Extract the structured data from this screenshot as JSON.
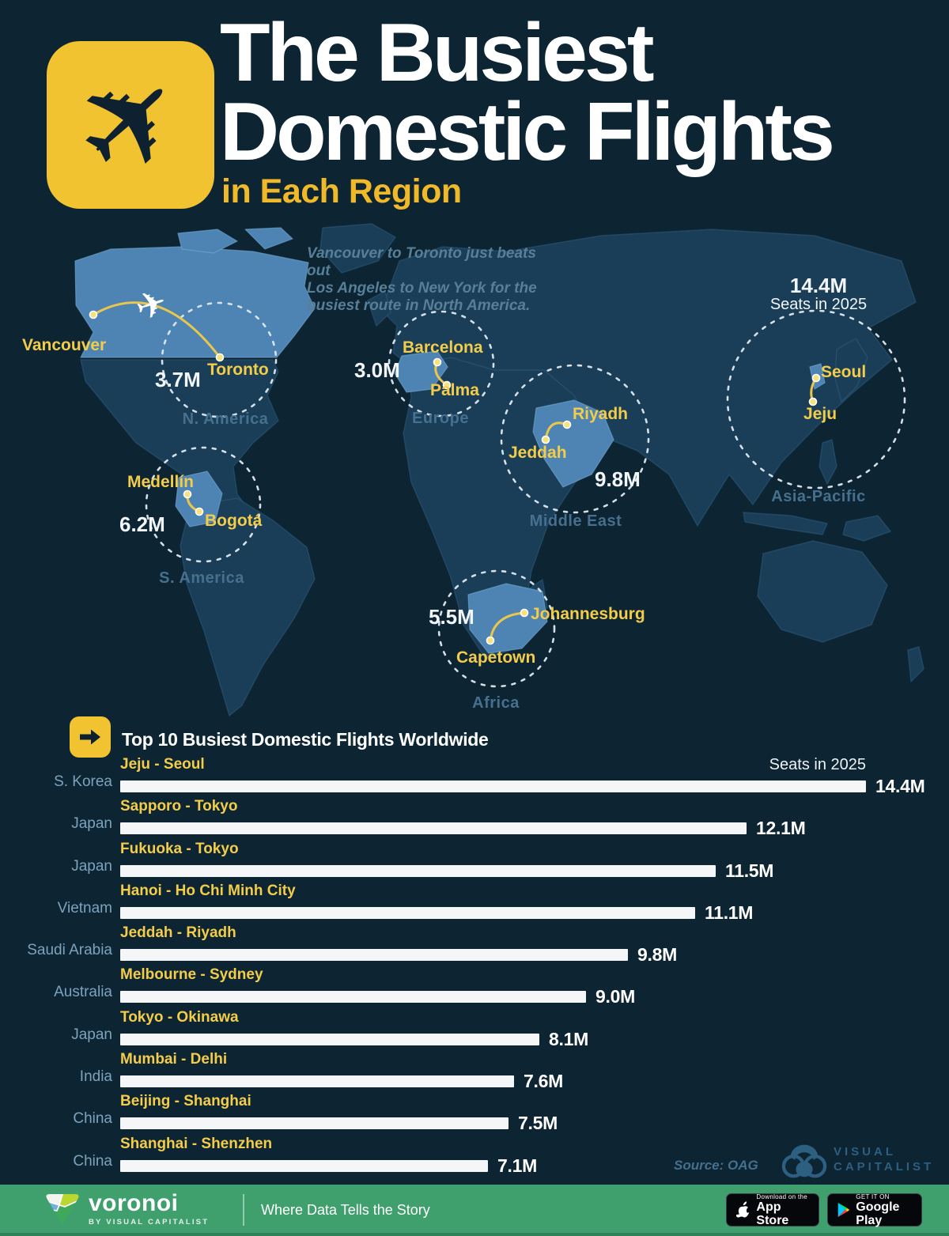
{
  "theme": {
    "background": "#0d2433",
    "land": "#1a3e58",
    "highlight_blue": "#4d84b4",
    "accent_yellow": "#f2c330",
    "label_yellow": "#f3cd4a",
    "steel_blue": "#46708e",
    "bar_white": "#f4f6f8",
    "footer_green": "#3fa06e"
  },
  "header": {
    "icon": "airplane-icon",
    "title_line1": "The Busiest",
    "title_line2": "Domestic Flights",
    "subtitle": "in Each Region"
  },
  "map": {
    "annotation": [
      "Vancouver to Toronto just beats out",
      "Los Angeles to New York for the",
      "busiest route in North America."
    ],
    "regions": [
      {
        "name": "N. America",
        "value": "3.7M",
        "cities": [
          "Vancouver",
          "Toronto"
        ]
      },
      {
        "name": "Europe",
        "value": "3.0M",
        "cities": [
          "Barcelona",
          "Palma"
        ]
      },
      {
        "name": "Middle East",
        "value": "9.8M",
        "cities": [
          "Jeddah",
          "Riyadh"
        ]
      },
      {
        "name": "Asia-Pacific",
        "value": "14.4M",
        "value_caption": "Seats in 2025",
        "cities": [
          "Seoul",
          "Jeju"
        ]
      },
      {
        "name": "S. America",
        "value": "6.2M",
        "cities": [
          "Medellín",
          "Bogotá"
        ]
      },
      {
        "name": "Africa",
        "value": "5.5M",
        "cities": [
          "Capetown",
          "Johannesburg"
        ]
      }
    ]
  },
  "chart_data": {
    "type": "bar",
    "title": "Top 10 Busiest Domestic Flights Worldwide",
    "value_label": "Seats in 2025",
    "unit": "millions of seats",
    "xlim": [
      0,
      14.4
    ],
    "max": 14.4,
    "rows": [
      {
        "country": "S. Korea",
        "route": "Jeju - Seoul",
        "value": 14.4,
        "label": "14.4M"
      },
      {
        "country": "Japan",
        "route": "Sapporo - Tokyo",
        "value": 12.1,
        "label": "12.1M"
      },
      {
        "country": "Japan",
        "route": "Fukuoka - Tokyo",
        "value": 11.5,
        "label": "11.5M"
      },
      {
        "country": "Vietnam",
        "route": "Hanoi - Ho Chi Minh City",
        "value": 11.1,
        "label": "11.1M"
      },
      {
        "country": "Saudi Arabia",
        "route": "Jeddah - Riyadh",
        "value": 9.8,
        "label": "9.8M"
      },
      {
        "country": "Australia",
        "route": "Melbourne - Sydney",
        "value": 9.0,
        "label": "9.0M"
      },
      {
        "country": "Japan",
        "route": "Tokyo - Okinawa",
        "value": 8.1,
        "label": "8.1M"
      },
      {
        "country": "India",
        "route": "Mumbai - Delhi",
        "value": 7.6,
        "label": "7.6M"
      },
      {
        "country": "China",
        "route": "Beijing - Shanghai",
        "value": 7.5,
        "label": "7.5M"
      },
      {
        "country": "China",
        "route": "Shanghai - Shenzhen",
        "value": 7.1,
        "label": "7.1M"
      }
    ]
  },
  "source": "Source: OAG",
  "vc": {
    "line1": "VISUAL",
    "line2": "CAPITALIST"
  },
  "footer": {
    "brand": "voronoi",
    "brand_sub": "BY VISUAL CAPITALIST",
    "tagline": "Where Data Tells the Story",
    "appstore_top": "Download on the",
    "appstore_bottom": "App Store",
    "gplay_top": "GET IT ON",
    "gplay_bottom": "Google Play"
  }
}
